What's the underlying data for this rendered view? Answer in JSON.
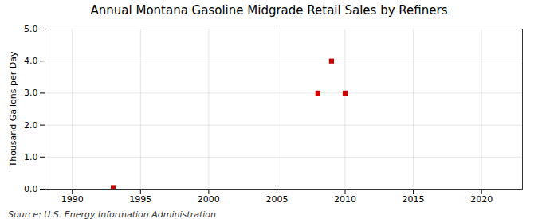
{
  "chart_data": {
    "type": "scatter",
    "title": "Annual Montana Gasoline Midgrade Retail Sales by Refiners",
    "ylabel": "Thousand Gallons per Day",
    "annotations": [
      "Source: U.S. Energy Information Administration"
    ],
    "x": [
      1993,
      2008,
      2009,
      2010
    ],
    "values": [
      0.05,
      3.0,
      4.0,
      3.0
    ],
    "color": "#cc0000",
    "marker": "square",
    "xlim": [
      1988,
      2023
    ],
    "ylim": [
      0.0,
      5.0
    ],
    "xticks": [
      1990,
      1995,
      2000,
      2005,
      2010,
      2015,
      2020
    ],
    "yticks": [
      {
        "value": 0.0,
        "label": "0.0"
      },
      {
        "value": 1.0,
        "label": "1.0"
      },
      {
        "value": 2.0,
        "label": "2.0"
      },
      {
        "value": 3.0,
        "label": "3.0"
      },
      {
        "value": 4.0,
        "label": "4.0"
      },
      {
        "value": 5.0,
        "label": "5.0"
      }
    ],
    "grid": true
  }
}
